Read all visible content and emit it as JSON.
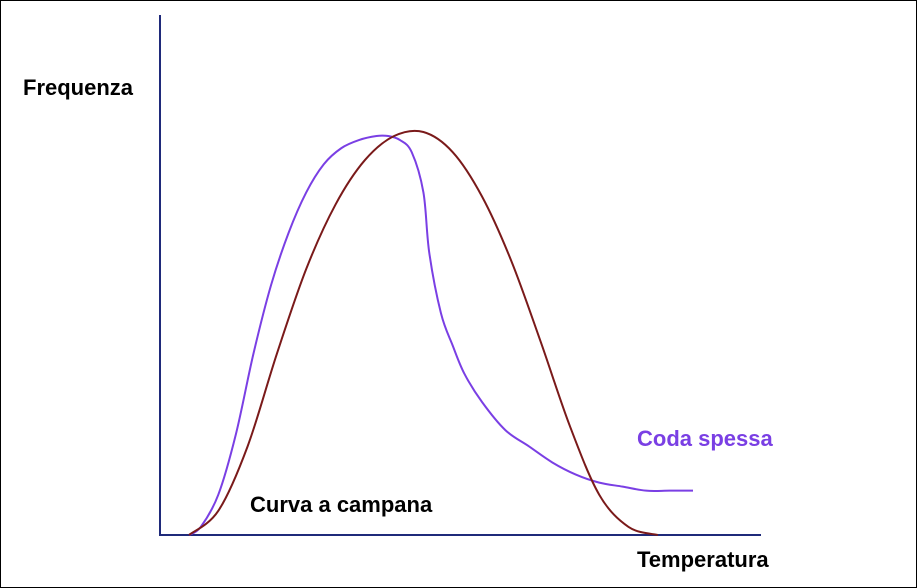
{
  "chart_data": {
    "type": "line",
    "title": "",
    "xlabel": "Temperatura",
    "ylabel": "Frequenza",
    "x_range": [
      0,
      100
    ],
    "y_range": [
      0,
      100
    ],
    "grid": false,
    "axis_color": "#1f2a7a",
    "series": [
      {
        "name": "Coda spessa",
        "color": "#7a3fe4",
        "x": [
          0,
          2,
          5,
          8,
          11,
          14,
          17,
          20,
          23,
          26,
          29,
          32,
          34,
          36,
          38,
          40,
          41,
          43,
          45,
          47,
          50,
          54,
          58,
          62,
          66,
          70,
          74,
          78,
          82,
          86
        ],
        "y": [
          0,
          2,
          10,
          25,
          45,
          62,
          75,
          85,
          92,
          96,
          98,
          99,
          99,
          98,
          95,
          85,
          70,
          55,
          47,
          40,
          33,
          26,
          22,
          18,
          15,
          13,
          12,
          11,
          11,
          11
        ]
      },
      {
        "name": "Curva a campana",
        "color": "#7a1a1a",
        "x": [
          0,
          5,
          10,
          15,
          20,
          25,
          30,
          35,
          40,
          45,
          50,
          55,
          60,
          65,
          70,
          75,
          80
        ],
        "y": [
          0,
          6,
          22,
          45,
          66,
          82,
          93,
          99,
          100,
          95,
          84,
          68,
          48,
          27,
          10,
          2,
          0
        ]
      }
    ],
    "annotations": [
      {
        "text": "Coda spessa",
        "color": "#7a3fe4"
      },
      {
        "text": "Curva a campana",
        "color": "#000000"
      }
    ]
  }
}
